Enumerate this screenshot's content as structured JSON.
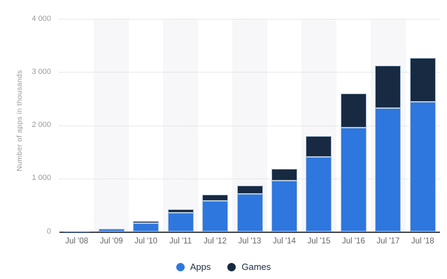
{
  "chart_data": {
    "type": "bar",
    "stacked": true,
    "title": "",
    "xlabel": "",
    "ylabel": "Number of apps in thousands",
    "ylim": [
      0,
      4000
    ],
    "grid": "horizontal-dotted",
    "legend_position": "bottom-center",
    "plot_background": "alternating vertical stripes on odd columns",
    "categories": [
      "Jul '08",
      "Jul '09",
      "Jul '10",
      "Jul '11",
      "Jul '12",
      "Jul '13",
      "Jul '14",
      "Jul '15",
      "Jul '16",
      "Jul '17",
      "Jul '18"
    ],
    "yticks": [
      {
        "value": 0,
        "label": "0"
      },
      {
        "value": 1000,
        "label": "1 000"
      },
      {
        "value": 2000,
        "label": "2 000"
      },
      {
        "value": 3000,
        "label": "3 000"
      },
      {
        "value": 4000,
        "label": "4 000"
      }
    ],
    "series": [
      {
        "name": "Apps",
        "color": "#2e77de",
        "values": [
          4,
          48,
          160,
          360,
          580,
          705,
          960,
          1410,
          1960,
          2320,
          2440
        ]
      },
      {
        "name": "Games",
        "color": "#182a42",
        "values": [
          1,
          7,
          35,
          60,
          120,
          160,
          225,
          390,
          640,
          800,
          820
        ]
      }
    ],
    "totals": [
      5,
      55,
      195,
      420,
      700,
      865,
      1185,
      1800,
      2600,
      3120,
      3260
    ],
    "colors": {
      "apps": "#2e77de",
      "games": "#182a42",
      "bar_border": "#afc5dc",
      "stripe": "#f7f7f9",
      "gridline": "#d5d5d5",
      "axis_line": "#45474a",
      "y_tick_text": "#9a9a9a",
      "x_tick_text": "#666666",
      "legend_text": "#1c2b40",
      "background": "#ffffff"
    }
  }
}
